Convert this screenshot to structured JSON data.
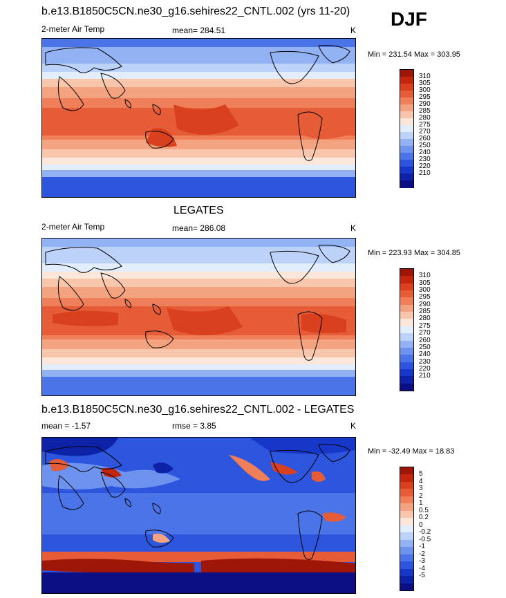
{
  "season": "DJF",
  "colors": {
    "abs_scale": [
      "#0c0f83",
      "#0d22a6",
      "#1737c8",
      "#2d55de",
      "#4a74e8",
      "#6d93ef",
      "#93b2f4",
      "#bdd2f8",
      "#e2eefb",
      "#fbe6d9",
      "#f8c6ac",
      "#f3a37f",
      "#ee7f58",
      "#e55c36",
      "#d9401e",
      "#c3260c",
      "#9e1608"
    ],
    "diff_scale": [
      "#0c0f83",
      "#0d22a6",
      "#1737c8",
      "#2d55de",
      "#4a74e8",
      "#6d93ef",
      "#93b2f4",
      "#bdd2f8",
      "#e2eefb",
      "#fbe6d9",
      "#f8c6ac",
      "#f3a37f",
      "#ee7f58",
      "#e55c36",
      "#d9401e",
      "#c3260c",
      "#9e1608"
    ],
    "land_outline": "#000000"
  },
  "panels": [
    {
      "title": "b.e13.B1850C5CN.ne30_g16.sehires22_CNTL.002 (yrs 11-20)",
      "left_label": "2-meter Air Temp",
      "center_label": "mean= 284.51",
      "units": "K",
      "minmax": "Min = 231.54 Max = 303.95",
      "ticks": [
        "310",
        "305",
        "300",
        "295",
        "290",
        "285",
        "280",
        "275",
        "270",
        "260",
        "250",
        "240",
        "230",
        "220",
        "210"
      ],
      "kind": "abs"
    },
    {
      "title": "LEGATES",
      "left_label": "2-meter Air Temp",
      "center_label": "mean= 286.08",
      "units": "K",
      "minmax": "Min = 223.93 Max = 304.85",
      "ticks": [
        "310",
        "305",
        "300",
        "295",
        "290",
        "285",
        "280",
        "275",
        "270",
        "260",
        "250",
        "240",
        "230",
        "220",
        "210"
      ],
      "kind": "abs"
    },
    {
      "title": "b.e13.B1850C5CN.ne30_g16.sehires22_CNTL.002 - LEGATES",
      "left_label": "mean =  -1.57",
      "center_label": "rmse =   3.85",
      "units": "K",
      "minmax": "Min = -32.49 Max =  18.83",
      "ticks": [
        "5",
        "4",
        "3",
        "2",
        "1",
        "0.5",
        "0.2",
        "0",
        "-0.2",
        "-0.5",
        "-1",
        "-2",
        "-3",
        "-4",
        "-5"
      ],
      "kind": "diff"
    }
  ]
}
